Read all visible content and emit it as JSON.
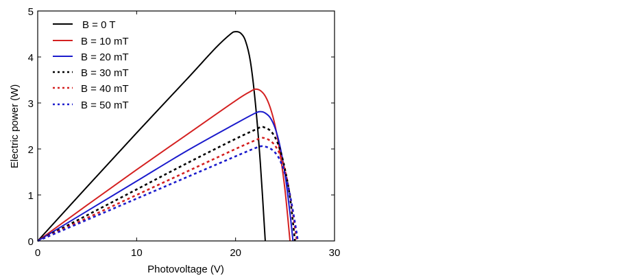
{
  "chart_data": {
    "type": "line",
    "title": "",
    "xlabel": "Photovoltage (V)",
    "ylabel": "Electric power (W)",
    "xlim": [
      0,
      30
    ],
    "ylim": [
      0,
      5
    ],
    "xticks": [
      "0",
      "10",
      "20",
      "30"
    ],
    "yticks": [
      "0",
      "1",
      "2",
      "3",
      "4",
      "5"
    ],
    "grid": false,
    "legend_position": "top-left",
    "series": [
      {
        "name": "B = 0 T",
        "color": "#000000",
        "style": "solid",
        "points": [
          [
            0,
            0
          ],
          [
            5,
            1.18
          ],
          [
            10,
            2.35
          ],
          [
            15,
            3.5
          ],
          [
            18,
            4.2
          ],
          [
            19.5,
            4.5
          ],
          [
            20,
            4.55
          ],
          [
            20.5,
            4.52
          ],
          [
            21,
            4.35
          ],
          [
            21.5,
            3.9
          ],
          [
            22,
            3.0
          ],
          [
            22.5,
            1.7
          ],
          [
            23,
            0
          ]
        ]
      },
      {
        "name": "B = 10 mT",
        "color": "#d42020",
        "style": "solid",
        "points": [
          [
            0,
            0
          ],
          [
            5,
            0.78
          ],
          [
            10,
            1.55
          ],
          [
            15,
            2.3
          ],
          [
            20,
            3.05
          ],
          [
            21.5,
            3.25
          ],
          [
            22,
            3.3
          ],
          [
            22.5,
            3.27
          ],
          [
            23,
            3.15
          ],
          [
            23.5,
            2.9
          ],
          [
            24,
            2.5
          ],
          [
            24.5,
            1.9
          ],
          [
            25,
            1.1
          ],
          [
            25.5,
            0
          ]
        ]
      },
      {
        "name": "B = 20 mT",
        "color": "#1a1acc",
        "style": "solid",
        "points": [
          [
            0,
            0
          ],
          [
            5,
            0.65
          ],
          [
            10,
            1.3
          ],
          [
            15,
            1.95
          ],
          [
            20,
            2.55
          ],
          [
            22,
            2.78
          ],
          [
            22.6,
            2.81
          ],
          [
            23,
            2.78
          ],
          [
            23.5,
            2.68
          ],
          [
            24,
            2.45
          ],
          [
            24.5,
            2.05
          ],
          [
            25,
            1.45
          ],
          [
            25.5,
            0.6
          ],
          [
            25.8,
            0
          ]
        ]
      },
      {
        "name": "B = 30 mT",
        "color": "#000000",
        "style": "dashed",
        "points": [
          [
            0,
            0
          ],
          [
            5,
            0.56
          ],
          [
            10,
            1.12
          ],
          [
            15,
            1.68
          ],
          [
            20,
            2.22
          ],
          [
            22,
            2.42
          ],
          [
            22.6,
            2.48
          ],
          [
            23,
            2.46
          ],
          [
            23.5,
            2.4
          ],
          [
            24,
            2.25
          ],
          [
            24.5,
            1.98
          ],
          [
            25,
            1.55
          ],
          [
            25.5,
            0.95
          ],
          [
            26,
            0
          ]
        ]
      },
      {
        "name": "B = 40 mT",
        "color": "#d42020",
        "style": "dashed",
        "points": [
          [
            0,
            0
          ],
          [
            5,
            0.5
          ],
          [
            10,
            1.0
          ],
          [
            15,
            1.5
          ],
          [
            20,
            2.0
          ],
          [
            22,
            2.19
          ],
          [
            22.6,
            2.24
          ],
          [
            23,
            2.23
          ],
          [
            23.5,
            2.18
          ],
          [
            24,
            2.07
          ],
          [
            24.5,
            1.87
          ],
          [
            25,
            1.52
          ],
          [
            25.5,
            1.0
          ],
          [
            26,
            0.3
          ],
          [
            26.2,
            0
          ]
        ]
      },
      {
        "name": "B = 50 mT",
        "color": "#1a1acc",
        "style": "dashed",
        "points": [
          [
            0,
            0
          ],
          [
            5,
            0.46
          ],
          [
            10,
            0.92
          ],
          [
            15,
            1.38
          ],
          [
            20,
            1.84
          ],
          [
            22,
            2.02
          ],
          [
            22.6,
            2.06
          ],
          [
            23,
            2.05
          ],
          [
            23.5,
            2.01
          ],
          [
            24,
            1.92
          ],
          [
            24.5,
            1.75
          ],
          [
            25,
            1.45
          ],
          [
            25.5,
            1.0
          ],
          [
            26,
            0.4
          ],
          [
            26.3,
            0
          ]
        ]
      }
    ]
  }
}
